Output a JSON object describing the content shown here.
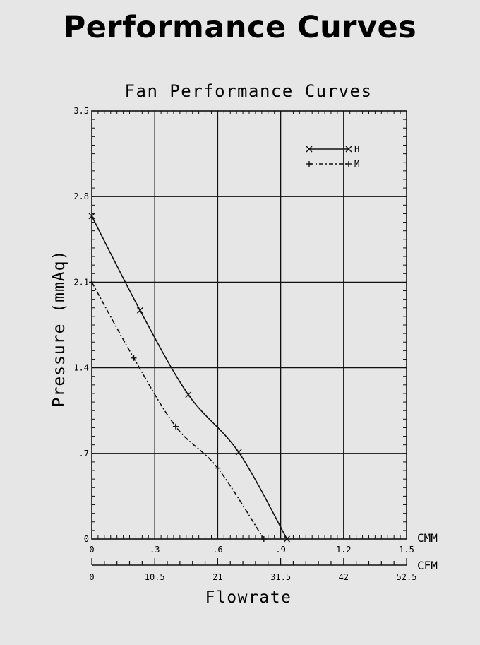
{
  "page": {
    "title": "Performance Curves"
  },
  "chart_data": {
    "type": "line",
    "title": "Fan Performance Curves",
    "xlabel": "Flowrate",
    "ylabel": "Pressure (mmAq)",
    "x_unit": "CMM",
    "x2_unit": "CFM",
    "xlim": [
      0,
      1.5
    ],
    "ylim": [
      0,
      3.5
    ],
    "x_ticks": [
      0,
      0.3,
      0.6,
      0.9,
      1.2,
      1.5
    ],
    "x_tick_labels": [
      "0",
      ".3",
      ".6",
      ".9",
      "1.2",
      "1.5"
    ],
    "x2_ticks": [
      0,
      10.5,
      21,
      31.5,
      42,
      52.5
    ],
    "x2_tick_labels": [
      "0",
      "10.5",
      "21",
      "31.5",
      "42",
      "52.5"
    ],
    "y_ticks": [
      0,
      0.7,
      1.4,
      2.1,
      2.8,
      3.5
    ],
    "y_tick_labels": [
      "0",
      ".7",
      "1.4",
      "2.1",
      "2.8",
      "3.5"
    ],
    "grid": true,
    "legend_position": "top-right",
    "series": [
      {
        "name": "H",
        "marker": "x",
        "line": "solid",
        "points": [
          [
            0,
            2.64
          ],
          [
            0.23,
            1.87
          ],
          [
            0.46,
            1.18
          ],
          [
            0.7,
            0.71
          ],
          [
            0.93,
            0.0
          ]
        ]
      },
      {
        "name": "M",
        "marker": "+",
        "line": "dash-dot",
        "points": [
          [
            0,
            2.1
          ],
          [
            0.2,
            1.48
          ],
          [
            0.4,
            0.92
          ],
          [
            0.6,
            0.58
          ],
          [
            0.82,
            0.0
          ]
        ]
      }
    ]
  }
}
